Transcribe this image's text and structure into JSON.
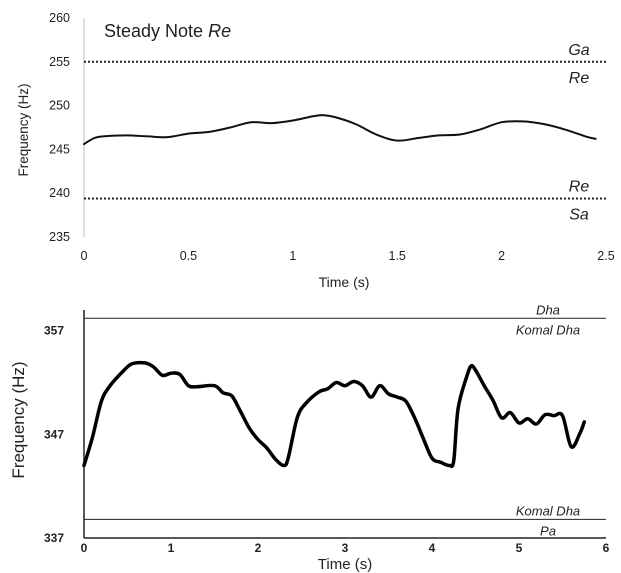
{
  "chart_data": [
    {
      "type": "line",
      "title": "Steady Note",
      "title_note": "Re",
      "xlabel": "Time (s)",
      "ylabel": "Frequency (Hz)",
      "xlim": [
        0,
        2.5
      ],
      "ylim": [
        235,
        260
      ],
      "xticks": [
        "0",
        "0.5",
        "1",
        "1.5",
        "2",
        "2.5"
      ],
      "yticks": [
        "235",
        "240",
        "245",
        "250",
        "255",
        "260"
      ],
      "grid": false,
      "series": [
        {
          "x": [
            0,
            0.05,
            0.1,
            0.2,
            0.3,
            0.4,
            0.5,
            0.6,
            0.7,
            0.8,
            0.9,
            1.0,
            1.1,
            1.15,
            1.2,
            1.3,
            1.4,
            1.5,
            1.6,
            1.7,
            1.8,
            1.9,
            2.0,
            2.1,
            2.2,
            2.3,
            2.4,
            2.45
          ],
          "y": [
            245.6,
            246.3,
            246.5,
            246.6,
            246.5,
            246.4,
            246.8,
            247.0,
            247.5,
            248.1,
            248.0,
            248.3,
            248.8,
            248.9,
            248.7,
            247.9,
            246.7,
            246.0,
            246.3,
            246.6,
            246.7,
            247.3,
            248.1,
            248.2,
            247.9,
            247.3,
            246.5,
            246.2
          ]
        }
      ],
      "reference_lines": [
        {
          "y": 255,
          "style": "dotted",
          "label_above": "Ga",
          "label_below": "Re"
        },
        {
          "y": 239.4,
          "style": "dotted",
          "label_above": "Re",
          "label_below": "Sa"
        }
      ]
    },
    {
      "type": "line",
      "xlabel": "Time (s)",
      "ylabel": "Frequency (Hz)",
      "xlim": [
        0,
        6
      ],
      "ylim": [
        337,
        359
      ],
      "xticks": [
        "0",
        "1",
        "2",
        "3",
        "4",
        "5",
        "6"
      ],
      "yticks": [
        "337",
        "347",
        "357"
      ],
      "grid": false,
      "series": [
        {
          "x": [
            0,
            0.1,
            0.2,
            0.3,
            0.45,
            0.55,
            0.7,
            0.8,
            0.9,
            1.0,
            1.1,
            1.2,
            1.3,
            1.5,
            1.6,
            1.7,
            1.8,
            1.9,
            2.0,
            2.1,
            2.2,
            2.3,
            2.35,
            2.45,
            2.55,
            2.7,
            2.8,
            2.9,
            3.0,
            3.1,
            3.2,
            3.3,
            3.4,
            3.5,
            3.6,
            3.7,
            3.8,
            3.9,
            4.0,
            4.1,
            4.2,
            4.25,
            4.3,
            4.4,
            4.45,
            4.5,
            4.6,
            4.7,
            4.8,
            4.9,
            5.0,
            5.1,
            5.2,
            5.3,
            5.4,
            5.5,
            5.6,
            5.7,
            5.75
          ],
          "y": [
            344.0,
            346.8,
            350.2,
            351.7,
            353.1,
            353.8,
            353.9,
            353.5,
            352.7,
            352.9,
            352.8,
            351.7,
            351.6,
            351.7,
            351.0,
            350.7,
            349.2,
            347.6,
            346.5,
            345.7,
            344.6,
            344.0,
            344.8,
            348.6,
            350.0,
            351.1,
            351.4,
            352.0,
            351.7,
            352.1,
            351.7,
            350.6,
            351.7,
            350.9,
            350.6,
            350.2,
            348.6,
            346.6,
            344.7,
            344.3,
            344.0,
            344.5,
            349.5,
            352.6,
            353.6,
            353.2,
            351.7,
            350.3,
            348.6,
            349.1,
            348.1,
            348.5,
            348.0,
            348.9,
            348.8,
            348.8,
            345.8,
            347.1,
            348.2
          ]
        }
      ],
      "reference_lines": [
        {
          "y": 358.2,
          "style": "solid",
          "label_above": "Dha",
          "label_below": "Komal Dha"
        },
        {
          "y": 338.8,
          "style": "solid",
          "label_above": "Komal Dha",
          "label_below": "Pa"
        }
      ]
    }
  ]
}
